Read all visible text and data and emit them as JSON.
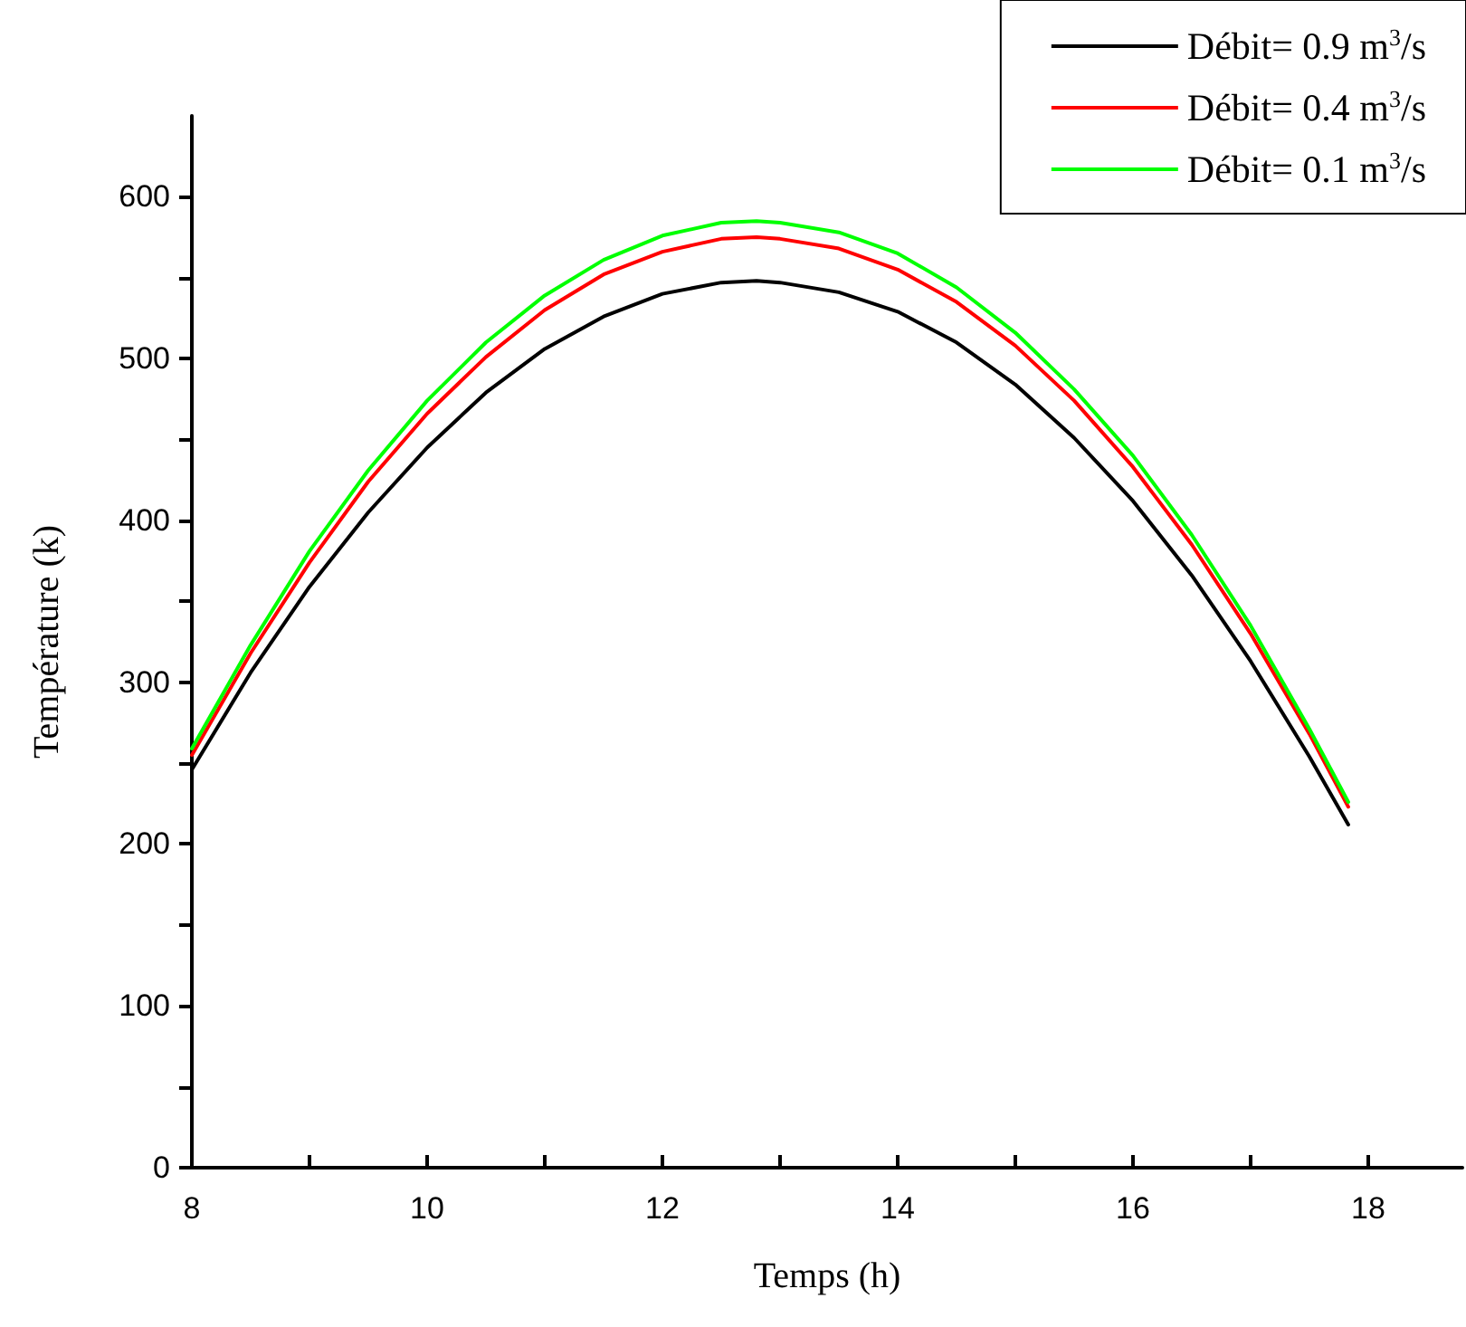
{
  "chart_data": {
    "type": "line",
    "xlabel": "Temps (h)",
    "ylabel": "Température (k)",
    "x": [
      8,
      8.5,
      9,
      9.5,
      10,
      10.5,
      11,
      11.5,
      12,
      12.5,
      12.8,
      13,
      13.5,
      14,
      14.5,
      15,
      15.5,
      16,
      16.5,
      17,
      17.5,
      17.83
    ],
    "series": [
      {
        "name": "Débit= 0.9 m$^{3}$/s",
        "color": "#000000",
        "values": [
          246,
          306,
          359,
          405,
          445,
          479,
          506,
          526,
          540,
          547,
          548,
          547,
          541,
          529,
          510,
          484,
          451,
          412,
          366,
          313,
          254,
          212
        ]
      },
      {
        "name": "Débit= 0.4 m$^{3}$/s",
        "color": "#ff0000",
        "values": [
          255,
          318,
          374,
          424,
          466,
          501,
          530,
          552,
          566,
          574,
          575,
          574,
          568,
          555,
          535,
          508,
          474,
          433,
          385,
          330,
          268,
          223
        ]
      },
      {
        "name": "Débit= 0.1 m$^{3}$/s",
        "color": "#00ff00",
        "values": [
          259,
          323,
          381,
          431,
          474,
          510,
          539,
          561,
          576,
          584,
          585,
          584,
          578,
          565,
          544,
          516,
          481,
          440,
          391,
          335,
          271,
          226
        ]
      }
    ],
    "xlim": [
      8,
      18.8
    ],
    "xticks": [
      8,
      {
        "value": 9,
        "label": null
      },
      10,
      {
        "value": 11,
        "label": null
      },
      12,
      {
        "value": 13,
        "label": null
      },
      14,
      {
        "value": 15,
        "label": null
      },
      16,
      {
        "value": 17,
        "label": null
      },
      18
    ],
    "ylim": [
      0,
      650
    ],
    "yticks": [
      0,
      {
        "value": 50,
        "label": null
      },
      100,
      {
        "value": 150,
        "label": null
      },
      200,
      {
        "value": 250,
        "label": null
      },
      300,
      {
        "value": 350,
        "label": null
      },
      400,
      {
        "value": 450,
        "label": null
      },
      500,
      {
        "value": 550,
        "label": null
      },
      600
    ],
    "grid": false,
    "legend": "top right",
    "marker": "none",
    "line_style": "solid"
  }
}
